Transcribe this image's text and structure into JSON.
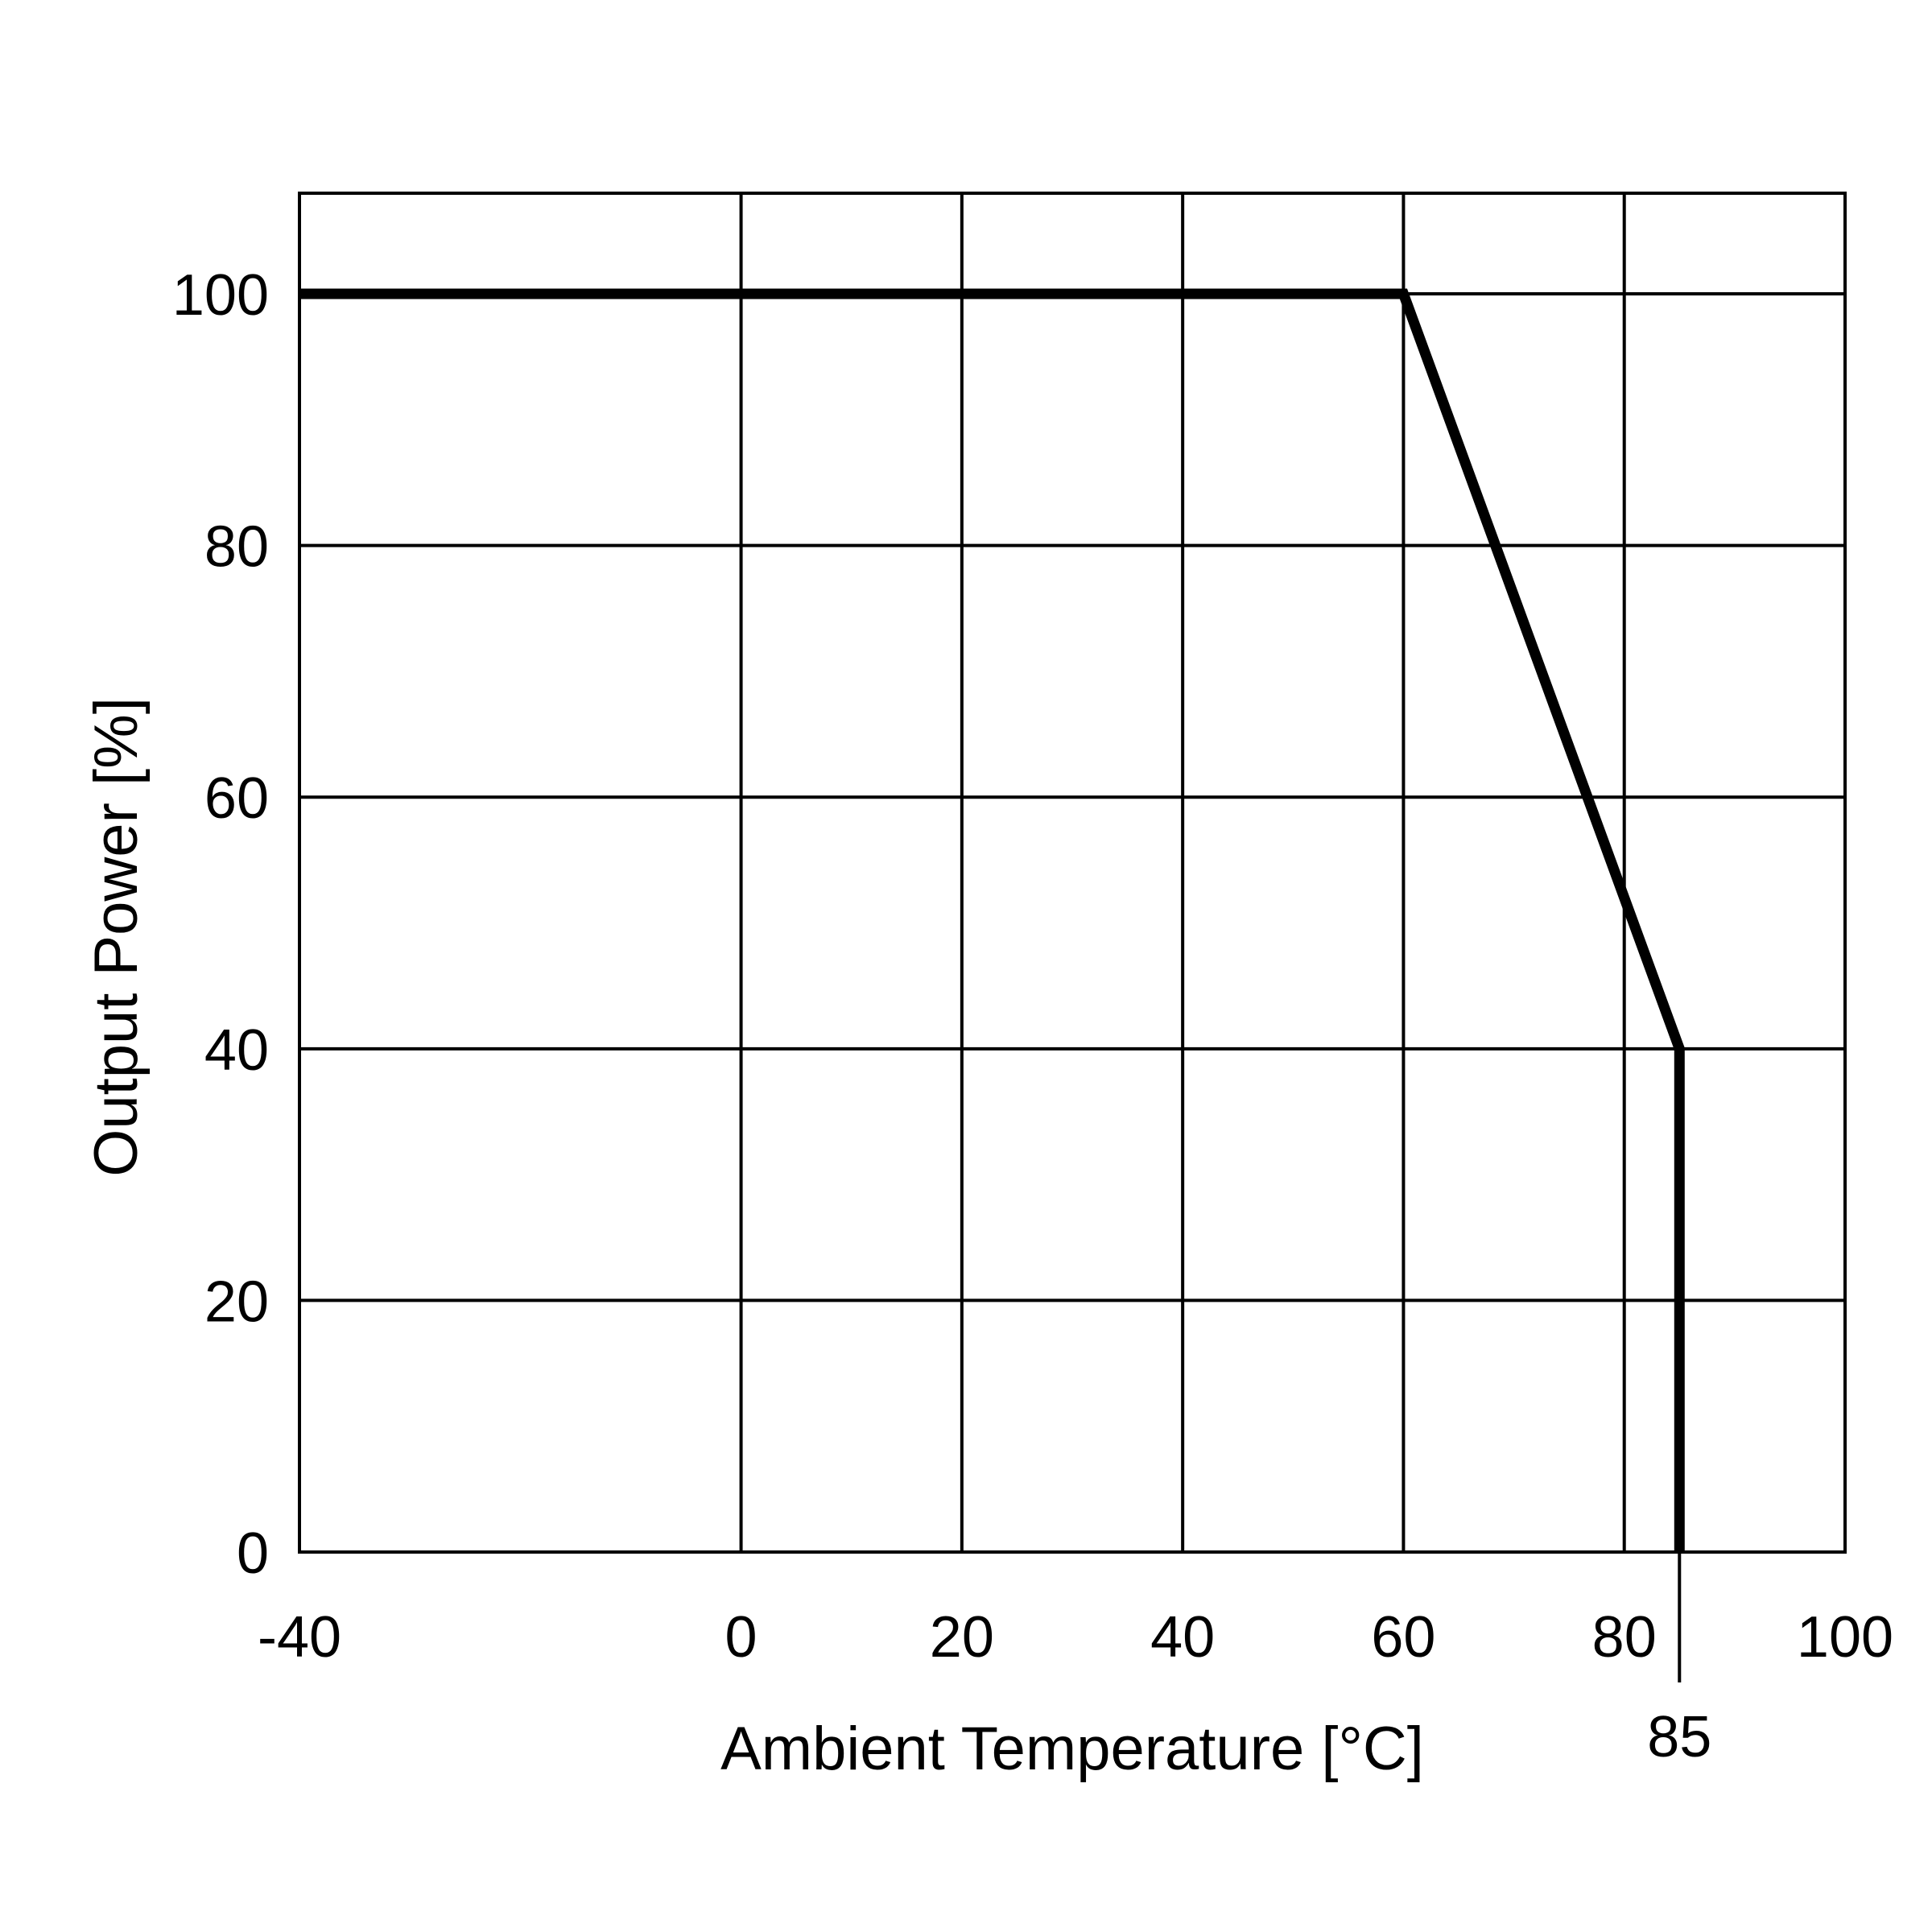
{
  "chart_data": {
    "type": "line",
    "title": "",
    "xlabel": "Ambient Temperature [°C]",
    "ylabel": "Output Power [%]",
    "xlim": [
      -40,
      100
    ],
    "ylim": [
      0,
      108
    ],
    "x_ticks": [
      -40,
      0,
      20,
      40,
      60,
      80,
      100
    ],
    "x_tick_labels": [
      "-40",
      "0",
      "20",
      "40",
      "60",
      "80",
      "100"
    ],
    "y_ticks": [
      0,
      20,
      40,
      60,
      80,
      100
    ],
    "y_tick_labels": [
      "0",
      "20",
      "40",
      "60",
      "80",
      "100"
    ],
    "grid": true,
    "series": [
      {
        "x": [
          -40,
          60,
          85,
          85
        ],
        "y": [
          100,
          100,
          40,
          0
        ]
      }
    ],
    "annotations": [
      {
        "x": 85,
        "label": "85"
      }
    ],
    "colors": {
      "line": "#000000",
      "grid": "#000000",
      "background": "#ffffff"
    }
  }
}
